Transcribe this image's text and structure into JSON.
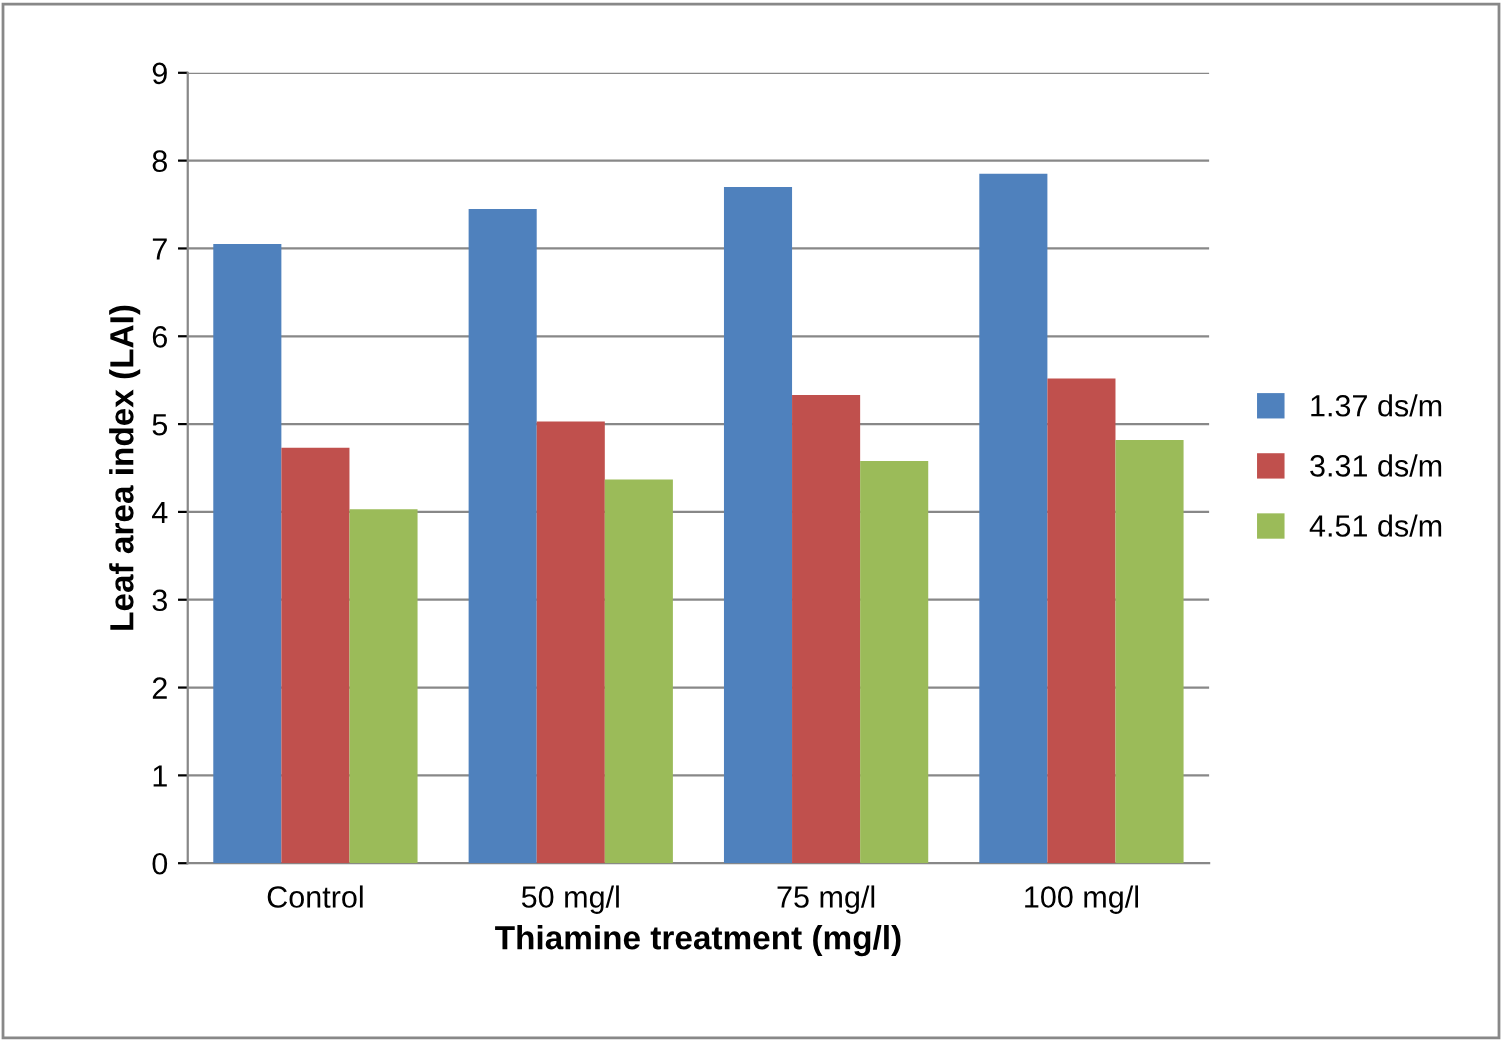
{
  "chart_data": {
    "type": "bar",
    "xlabel": "Thiamine treatment (mg/l)",
    "ylabel": "Leaf area index (LAI)",
    "categories": [
      "Control",
      "50 mg/l",
      "75 mg/l",
      "100 mg/l"
    ],
    "series": [
      {
        "name": "1.37 ds/m",
        "color": "#4f81bd",
        "values": [
          7.05,
          7.45,
          7.7,
          7.85
        ]
      },
      {
        "name": "3.31 ds/m",
        "color": "#c0504d",
        "values": [
          4.73,
          5.03,
          5.33,
          5.52
        ]
      },
      {
        "name": "4.51 ds/m",
        "color": "#9bbb59",
        "values": [
          4.03,
          4.37,
          4.58,
          4.82
        ]
      }
    ],
    "ylim": [
      0,
      9
    ],
    "yticks": [
      0,
      1,
      2,
      3,
      4,
      5,
      6,
      7,
      8,
      9
    ],
    "grid": "y",
    "legend": "right"
  }
}
